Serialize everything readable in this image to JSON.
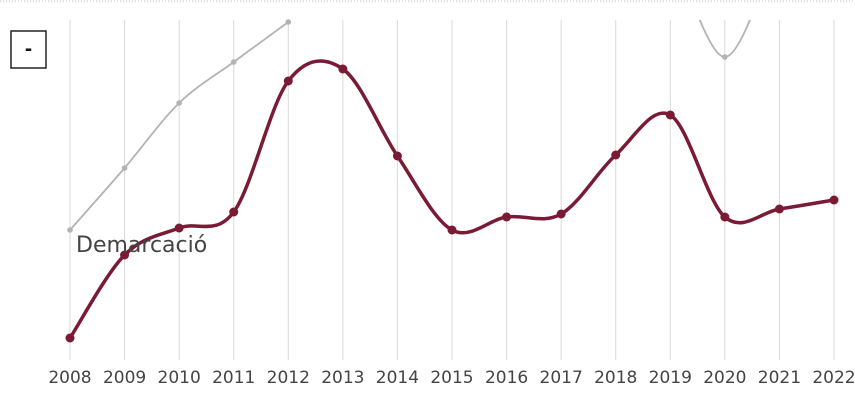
{
  "chart_data": {
    "type": "line",
    "x": [
      2008,
      2009,
      2010,
      2011,
      2012,
      2013,
      2014,
      2015,
      2016,
      2017,
      2018,
      2019,
      2020,
      2021,
      2022
    ],
    "xlim": [
      2008,
      2022
    ],
    "xticks": [
      2008,
      2009,
      2010,
      2011,
      2012,
      2013,
      2014,
      2015,
      2016,
      2017,
      2018,
      2019,
      2020,
      2021,
      2022
    ],
    "ylim": [
      0,
      340
    ],
    "grid": true,
    "button": "-",
    "series": [
      {
        "color": "#b3b3b3",
        "values": [
          130,
          192,
          257,
          298,
          338,
          null,
          null,
          345,
          345,
          null,
          null,
          420,
          303,
          420,
          null
        ]
      },
      {
        "name": "Demarcació",
        "color": "#7b1a35",
        "values": [
          22,
          105,
          132,
          148,
          279,
          291,
          204,
          130,
          143,
          146,
          205,
          245,
          143,
          151,
          160
        ]
      }
    ]
  }
}
